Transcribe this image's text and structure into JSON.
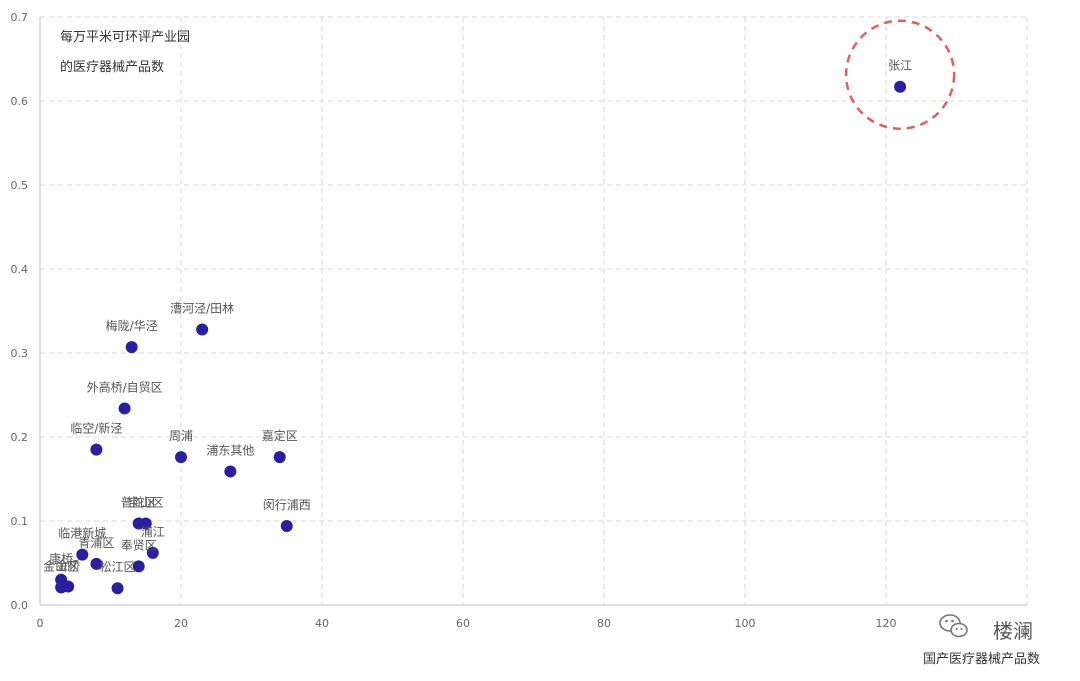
{
  "chart_data": {
    "type": "scatter",
    "title": "",
    "ylabel_lines": [
      "每万平米可环评产业园",
      "的医疗器械产品数"
    ],
    "xlabel": "国产医疗器械产品数",
    "xlim": [
      0,
      140
    ],
    "ylim": [
      0,
      0.7
    ],
    "x_ticks": [
      0,
      20,
      40,
      60,
      80,
      100,
      120
    ],
    "y_ticks": [
      0.0,
      0.1,
      0.2,
      0.3,
      0.4,
      0.5,
      0.6,
      0.7
    ],
    "x_tick_labels": [
      "0",
      "20",
      "40",
      "60",
      "80",
      "100",
      "120"
    ],
    "y_tick_labels": [
      "0.0",
      "0.1",
      "0.2",
      "0.3",
      "0.4",
      "0.5",
      "0.6",
      "0.7"
    ],
    "grid": true,
    "point_color": "#2a1fa0",
    "highlight_color": "#e06060",
    "highlight_point": "张江",
    "points": [
      {
        "label": "张江",
        "x": 122,
        "y": 0.617
      },
      {
        "label": "漕河泾/田林",
        "x": 23,
        "y": 0.328
      },
      {
        "label": "梅陇/华泾",
        "x": 13,
        "y": 0.307
      },
      {
        "label": "外高桥/自贸区",
        "x": 12,
        "y": 0.234
      },
      {
        "label": "临空/新泾",
        "x": 8,
        "y": 0.185
      },
      {
        "label": "周浦",
        "x": 20,
        "y": 0.176
      },
      {
        "label": "嘉定区",
        "x": 34,
        "y": 0.176
      },
      {
        "label": "浦东其他",
        "x": 27,
        "y": 0.159
      },
      {
        "label": "闵行浦西",
        "x": 35,
        "y": 0.094
      },
      {
        "label": "普陀区",
        "x": 14,
        "y": 0.097
      },
      {
        "label": "宝山区",
        "x": 15,
        "y": 0.097
      },
      {
        "label": "浦江",
        "x": 16,
        "y": 0.062
      },
      {
        "label": "临港新城",
        "x": 6,
        "y": 0.06
      },
      {
        "label": "青浦区",
        "x": 8,
        "y": 0.049
      },
      {
        "label": "奉贤区",
        "x": 14,
        "y": 0.046
      },
      {
        "label": "松江区",
        "x": 11,
        "y": 0.02
      },
      {
        "label": "康桥",
        "x": 3,
        "y": 0.03
      },
      {
        "label": "金山区",
        "x": 3,
        "y": 0.021
      },
      {
        "label": "金桥",
        "x": 4,
        "y": 0.022
      }
    ]
  },
  "watermark": {
    "icon": "wechat-icon",
    "text": "楼澜"
  }
}
